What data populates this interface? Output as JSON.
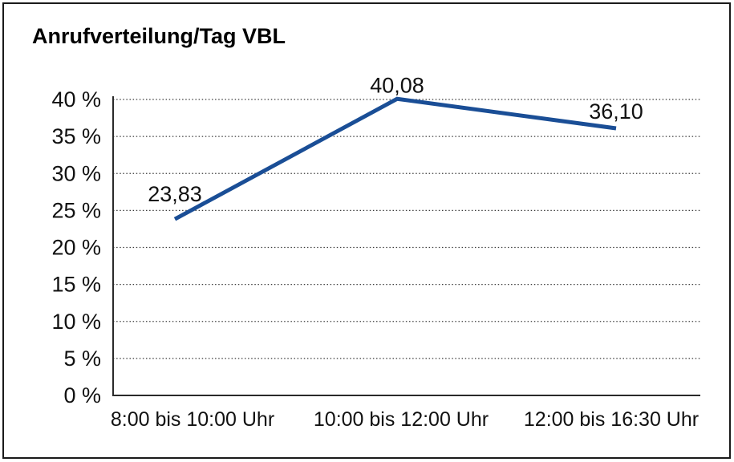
{
  "window": {
    "background_color": "#ffffff",
    "border_color": "#1a1a1a"
  },
  "chart_data": {
    "type": "line",
    "title": "Anrufverteilung/Tag VBL",
    "categories": [
      "8:00 bis 10:00 Uhr",
      "10:00 bis 12:00 Uhr",
      "12:00 bis 16:30 Uhr"
    ],
    "series": [
      {
        "values": [
          23.83,
          40.08,
          36.1
        ],
        "point_labels": [
          "23,83",
          "40,08",
          "36,10"
        ],
        "color": "#1a4e96",
        "stroke_width": 5
      }
    ],
    "xlabel": "",
    "ylabel": "",
    "ylim": [
      0,
      40
    ],
    "y_ticks": [
      {
        "value": 0,
        "label": "0 %"
      },
      {
        "value": 5,
        "label": "5 %"
      },
      {
        "value": 10,
        "label": "10 %"
      },
      {
        "value": 15,
        "label": "15 %"
      },
      {
        "value": 20,
        "label": "20 %"
      },
      {
        "value": 25,
        "label": "25 %"
      },
      {
        "value": 30,
        "label": "30 %"
      },
      {
        "value": 35,
        "label": "35 %"
      },
      {
        "value": 40,
        "label": "40 %"
      }
    ],
    "grid": "horizontal-dotted",
    "legend": "none",
    "gridline_color": "#3c3c3c",
    "axis_color": "#2a2a2a",
    "text_color": "#111111"
  }
}
